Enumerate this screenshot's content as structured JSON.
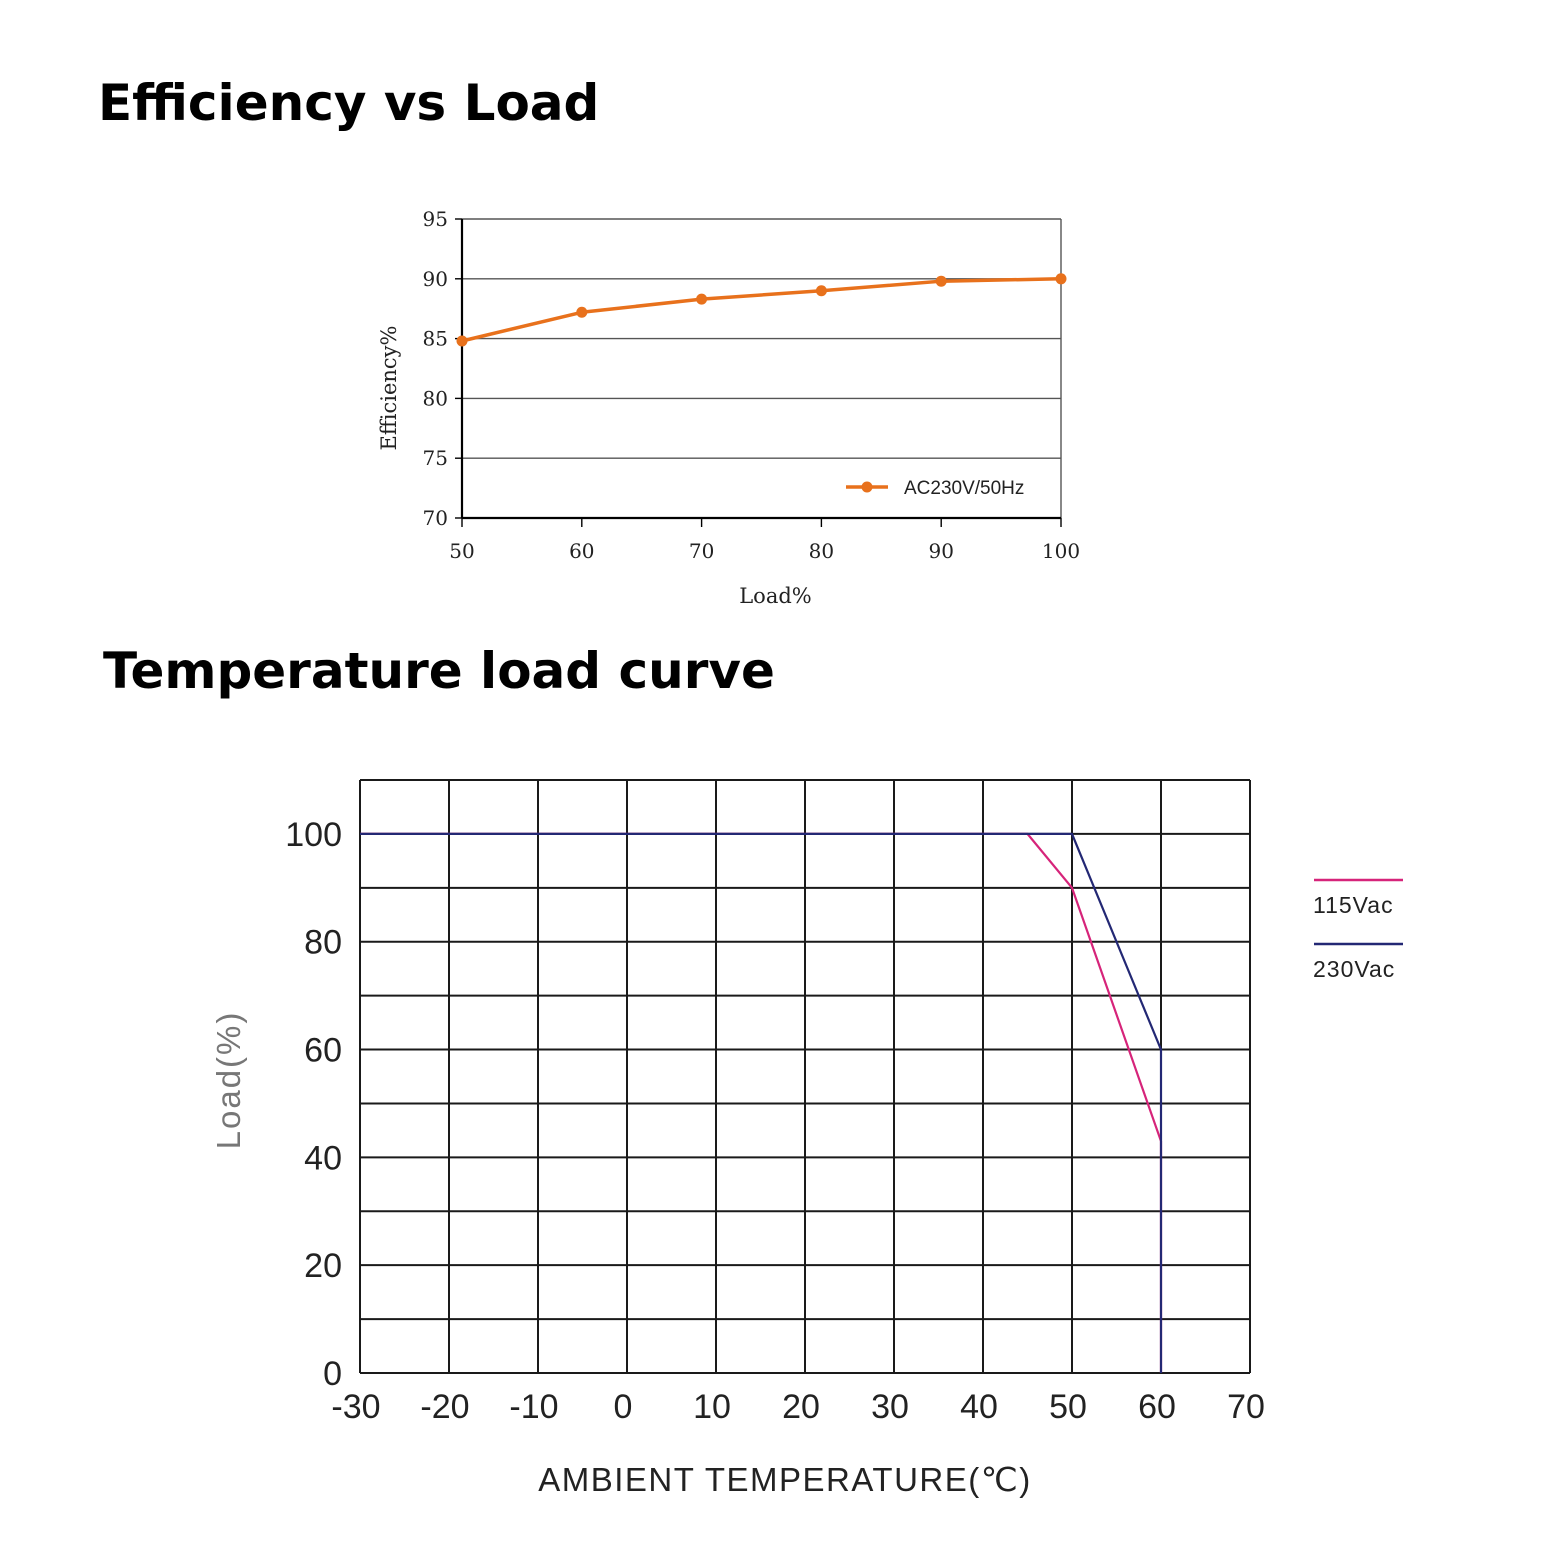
{
  "titles": {
    "efficiency": "Efficiency vs Load",
    "temperature": "Temperature load curve"
  },
  "chart_data": [
    {
      "type": "line",
      "title": "Efficiency vs Load",
      "xlabel": "Load%",
      "ylabel": "Efficiency%",
      "xlim": [
        50,
        100
      ],
      "ylim": [
        70,
        95
      ],
      "x_ticks": [
        "50",
        "60",
        "70",
        "80",
        "90",
        "100"
      ],
      "y_ticks": [
        "70",
        "75",
        "80",
        "85",
        "90",
        "95"
      ],
      "grid": "horizontal",
      "legend": "bottom-right",
      "series": [
        {
          "name": "AC230V/50Hz",
          "color": "#e8711c",
          "x": [
            50,
            60,
            70,
            80,
            90,
            100
          ],
          "y": [
            84.8,
            87.2,
            88.3,
            89.0,
            89.8,
            90.0
          ]
        }
      ]
    },
    {
      "type": "line",
      "title": "Temperature load curve",
      "xlabel": "AMBIENT TEMPERATURE(℃)",
      "ylabel": "Load(%)",
      "xlim": [
        -30,
        70
      ],
      "ylim": [
        0,
        110
      ],
      "x_ticks": [
        "-30",
        "-20",
        "-10",
        "0",
        "10",
        "20",
        "30",
        "40",
        "50",
        "60",
        "70"
      ],
      "y_ticks": [
        "0",
        "20",
        "40",
        "60",
        "80",
        "100"
      ],
      "grid": "both",
      "legend": "right",
      "series": [
        {
          "name": "115Vac",
          "color": "#d6247a",
          "x": [
            -30,
            45,
            50,
            60,
            60
          ],
          "y": [
            100,
            100,
            90,
            43,
            0
          ]
        },
        {
          "name": "230Vac",
          "color": "#232874",
          "x": [
            -30,
            50,
            60,
            60
          ],
          "y": [
            100,
            100,
            60,
            0
          ]
        }
      ]
    }
  ]
}
